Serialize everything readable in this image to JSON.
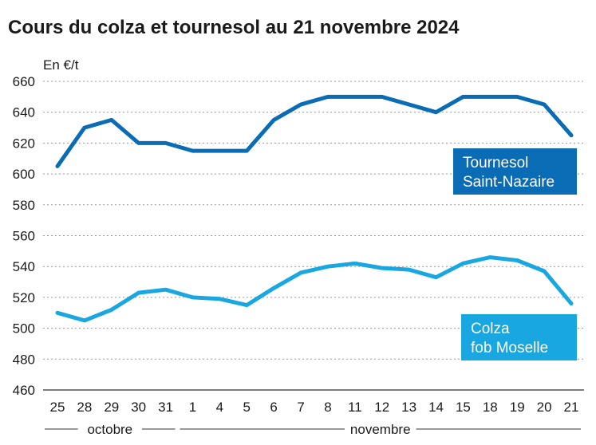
{
  "chart_data": {
    "type": "line",
    "title": "Cours du colza et tournesol au 21 novembre 2024",
    "ylabel": "En €/t",
    "ylim": [
      460,
      660
    ],
    "yticks": [
      460,
      480,
      500,
      520,
      540,
      560,
      580,
      600,
      620,
      640,
      660
    ],
    "categories": [
      "25",
      "28",
      "29",
      "30",
      "31",
      "1",
      "4",
      "5",
      "6",
      "7",
      "8",
      "11",
      "12",
      "13",
      "14",
      "15",
      "18",
      "19",
      "20",
      "21"
    ],
    "months": [
      {
        "label": "octobre",
        "from": 0,
        "to": 4
      },
      {
        "label": "novembre",
        "from": 5,
        "to": 19
      }
    ],
    "grid": true,
    "series": [
      {
        "name": "Tournesol Saint-Nazaire",
        "label_lines": [
          "Tournesol",
          "Saint-Nazaire"
        ],
        "color": "#0a6cb5",
        "values": [
          605,
          630,
          635,
          620,
          620,
          615,
          615,
          615,
          635,
          645,
          650,
          650,
          650,
          645,
          640,
          650,
          650,
          650,
          645,
          625
        ]
      },
      {
        "name": "Colza fob Moselle",
        "label_lines": [
          "Colza",
          "fob Moselle"
        ],
        "color": "#18a7e0",
        "values": [
          510,
          505,
          512,
          523,
          525,
          520,
          519,
          515,
          526,
          536,
          540,
          542,
          539,
          538,
          533,
          542,
          546,
          544,
          537,
          516
        ]
      }
    ]
  }
}
